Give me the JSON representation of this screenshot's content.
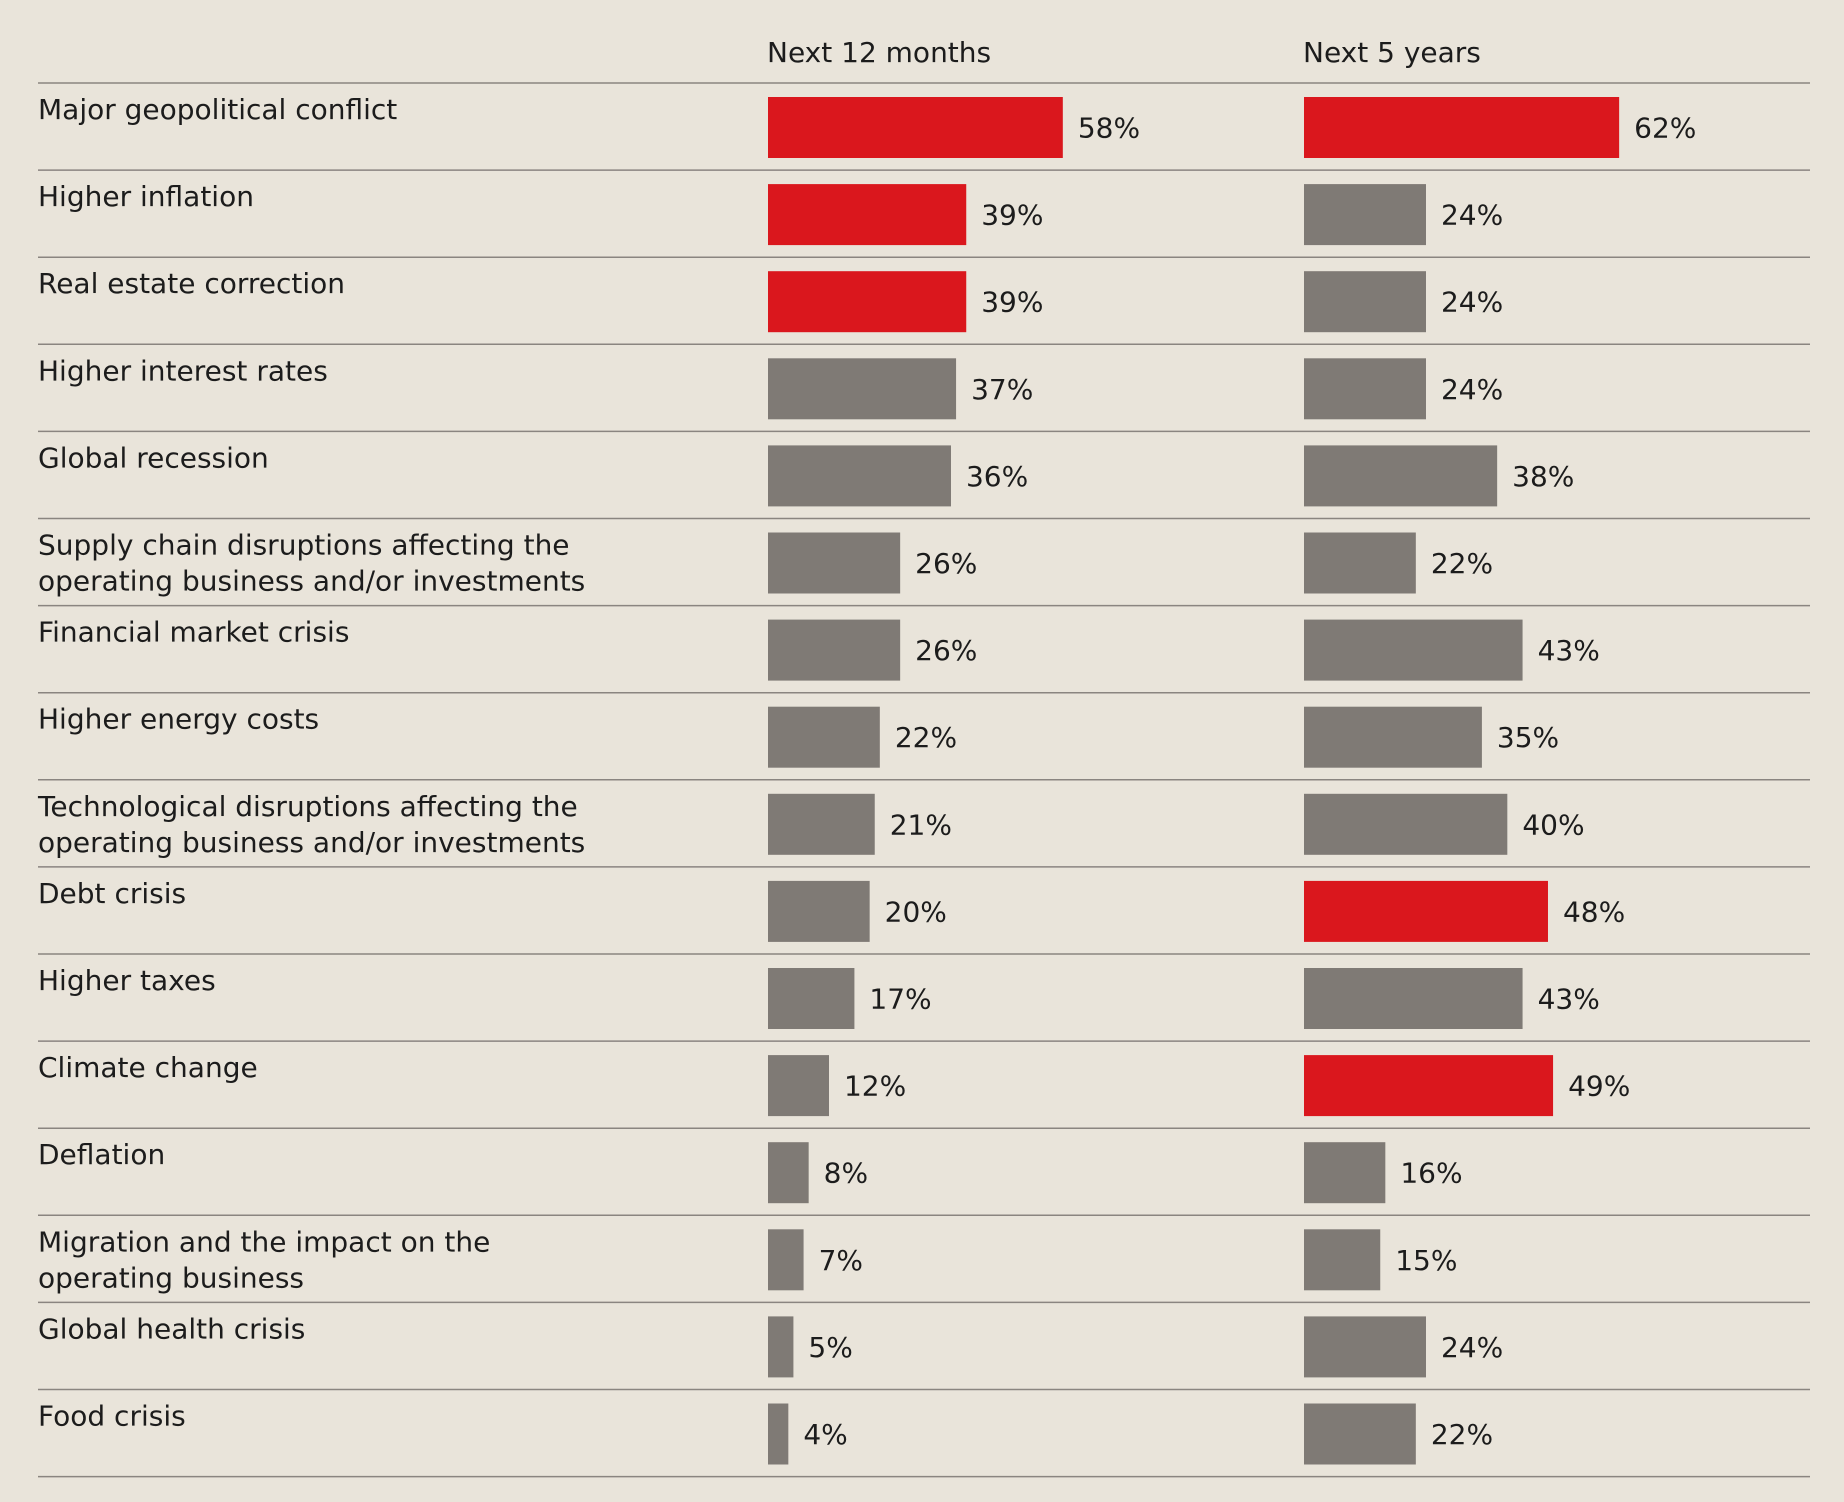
{
  "chart_data": {
    "type": "bar",
    "orientation": "horizontal",
    "columns": [
      "Next 12 months",
      "Next 5 years"
    ],
    "categories": [
      [
        "Major geopolitical conflict"
      ],
      [
        "Higher inflation"
      ],
      [
        "Real estate correction"
      ],
      [
        "Higher interest rates"
      ],
      [
        "Global recession"
      ],
      [
        "Supply chain disruptions affecting the",
        "operating business and/or investments"
      ],
      [
        "Financial market crisis"
      ],
      [
        "Higher energy costs"
      ],
      [
        "Technological disruptions affecting the",
        "operating business and/or investments"
      ],
      [
        "Debt crisis"
      ],
      [
        "Higher taxes"
      ],
      [
        "Climate change"
      ],
      [
        "Deflation"
      ],
      [
        "Migration and the impact on the",
        "operating business"
      ],
      [
        "Global health crisis"
      ],
      [
        "Food crisis"
      ]
    ],
    "series": [
      {
        "values": [
          58,
          39,
          39,
          37,
          36,
          26,
          26,
          22,
          21,
          20,
          17,
          12,
          8,
          7,
          5,
          4
        ],
        "labels": [
          "58%",
          "39%",
          "39%",
          "37%",
          "36%",
          "26%",
          "26%",
          "22%",
          "21%",
          "20%",
          "17%",
          "12%",
          "8%",
          "7%",
          "5%",
          "4%"
        ],
        "highlighted": [
          true,
          true,
          true,
          false,
          false,
          false,
          false,
          false,
          false,
          false,
          false,
          false,
          false,
          false,
          false,
          false
        ]
      },
      {
        "values": [
          62,
          24,
          24,
          24,
          38,
          22,
          43,
          35,
          40,
          48,
          43,
          49,
          16,
          15,
          24,
          22
        ],
        "labels": [
          "62%",
          "24%",
          "24%",
          "24%",
          "38%",
          "22%",
          "43%",
          "35%",
          "40%",
          "48%",
          "43%",
          "49%",
          "16%",
          "15%",
          "24%",
          "22%"
        ],
        "highlighted": [
          true,
          false,
          false,
          false,
          false,
          false,
          false,
          false,
          false,
          true,
          false,
          true,
          false,
          false,
          false,
          false
        ]
      }
    ],
    "value_unit": "%",
    "xlim": [
      0,
      100
    ],
    "grid": false,
    "legend": "none",
    "colors": {
      "highlight": "#da171d",
      "default": "#7f7a75",
      "background": "#e9e4da",
      "rule": "#8a8580",
      "text": "#1c1c1c"
    }
  }
}
